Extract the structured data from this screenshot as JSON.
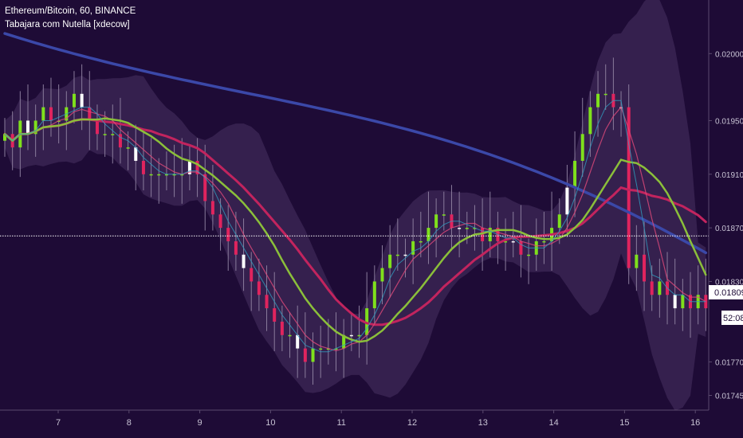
{
  "legend": {
    "symbol_line": "Ethereum/Bitcoin, 60, BINANCE",
    "indicator_line": "Tabajara com Nutella [xdecow]"
  },
  "colors": {
    "background": "#1e0b36",
    "bull_candle": "#7fe01c",
    "bear_candle": "#e0245e",
    "neutral_candle": "#ffffff",
    "band_fill": "#3a2552",
    "ma_fast": "#8bbf3a",
    "ma_mid": "#e04a7a",
    "ma_slow": "#c2245e",
    "ma_200": "#3b48a8",
    "axis_text": "#c8c3d4"
  },
  "chart_data": {
    "type": "candlestick",
    "title": "Ethereum/Bitcoin, 60, BINANCE",
    "x_ticks": [
      "7",
      "8",
      "9",
      "10",
      "11",
      "12",
      "13",
      "14",
      "15",
      "16"
    ],
    "y_ticks": [
      "0.020000",
      "0.019500",
      "0.019100",
      "0.018700",
      "0.018300",
      "0.017700",
      "0.017450"
    ],
    "ylim": [
      0.01734,
      0.0204
    ],
    "price_line": 0.01864,
    "last_price": "0.018097",
    "countdown": "52:08",
    "grid": false,
    "close_series": [
      0.0194,
      0.0193,
      0.0195,
      0.0194,
      0.0195,
      0.0196,
      0.0195,
      0.0195,
      0.0196,
      0.0197,
      0.0196,
      0.0195,
      0.0194,
      0.0194,
      0.0194,
      0.0193,
      0.0193,
      0.0192,
      0.0191,
      0.0191,
      0.0191,
      0.0191,
      0.0191,
      0.0191,
      0.0192,
      0.0191,
      0.0189,
      0.0188,
      0.0187,
      0.0186,
      0.0185,
      0.0184,
      0.0183,
      0.0182,
      0.0181,
      0.018,
      0.0179,
      0.0179,
      0.0178,
      0.0177,
      0.0178,
      0.0178,
      0.0178,
      0.0178,
      0.0179,
      0.0179,
      0.0179,
      0.0181,
      0.0183,
      0.0184,
      0.0185,
      0.0185,
      0.0185,
      0.0186,
      0.0186,
      0.0187,
      0.0188,
      0.0188,
      0.0187,
      0.0187,
      0.0187,
      0.0187,
      0.0186,
      0.0187,
      0.0186,
      0.0186,
      0.0186,
      0.0185,
      0.0185,
      0.0186,
      0.0186,
      0.0187,
      0.0188,
      0.019,
      0.0192,
      0.0194,
      0.0196,
      0.0197,
      0.0197,
      0.0196,
      0.0196,
      0.0184,
      0.0185,
      0.0183,
      0.0182,
      0.0183,
      0.0182,
      0.0181,
      0.0182,
      0.0181,
      0.0182,
      0.0181
    ]
  }
}
